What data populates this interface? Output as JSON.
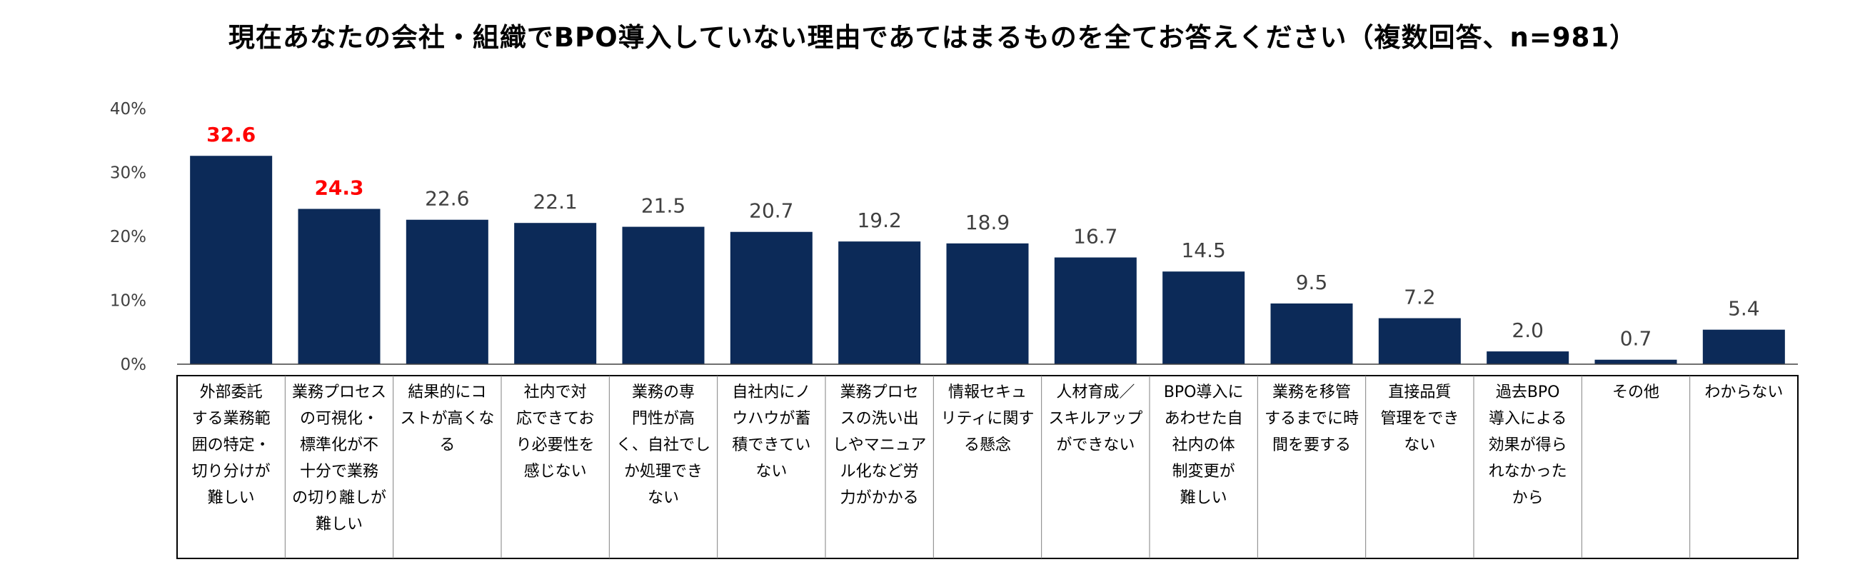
{
  "chart_data": {
    "type": "bar",
    "title": "現在あなたの会社・組織でBPO導入していない理由であてはまるものを全てお答えください（複数回答、n=981）",
    "ylim": [
      0,
      40
    ],
    "yticks": [
      "40%",
      "30%",
      "20%",
      "10%",
      "0%"
    ],
    "grid": false,
    "legend": "none",
    "bar_color": "#0c2a58",
    "highlight_label_color": "#ff0000",
    "highlighted_indices": [
      0,
      1
    ],
    "categories": [
      "外部委託する業務範囲の特定・切り分けが難しい",
      "業務プロセスの可視化・標準化が不十分で業務の切り離しが難しい",
      "結果的にコストが高くなる",
      "社内で対応できており必要性を感じない",
      "業務の専門性が高く、自社でしか処理できない",
      "自社内にノウハウが蓄積できていない",
      "業務プロセスの洗い出しやマニュアル化など労力がかかる",
      "情報セキュリティに関する懸念",
      "人材育成／スキルアップができない",
      "BPO導入にあわせた自社内の体制変更が難しい",
      "業務を移管するまでに時間を要する",
      "直接品質管理をできない",
      "過去BPO導入による効果が得られなかったから",
      "その他",
      "わからない"
    ],
    "category_lines": [
      [
        "外部委託",
        "する業務範",
        "囲の特定・",
        "切り分けが",
        "難しい"
      ],
      [
        "業務プロセス",
        "の可視化・",
        "標準化が不",
        "十分で業務",
        "の切り離しが",
        "難しい"
      ],
      [
        "結果的にコ",
        "ストが高くな",
        "る"
      ],
      [
        "社内で対",
        "応できてお",
        "り必要性を",
        "感じない"
      ],
      [
        "業務の専",
        "門性が高",
        "く、自社でし",
        "か処理でき",
        "ない"
      ],
      [
        "自社内にノ",
        "ウハウが蓄",
        "積できてい",
        "ない"
      ],
      [
        "業務プロセ",
        "スの洗い出",
        "しやマニュア",
        "ル化など労",
        "力がかかる"
      ],
      [
        "情報セキュ",
        "リティに関す",
        "る懸念"
      ],
      [
        "人材育成／",
        "スキルアップ",
        "ができない"
      ],
      [
        "BPO導入に",
        "あわせた自",
        "社内の体",
        "制変更が",
        "難しい"
      ],
      [
        "業務を移管",
        "するまでに時",
        "間を要する"
      ],
      [
        "直接品質",
        "管理をでき",
        "ない"
      ],
      [
        "過去BPO",
        "導入による",
        "効果が得ら",
        "れなかった",
        "から"
      ],
      [
        "その他"
      ],
      [
        "わからない"
      ]
    ],
    "values": [
      32.6,
      24.3,
      22.6,
      22.1,
      21.5,
      20.7,
      19.2,
      18.9,
      16.7,
      14.5,
      9.5,
      7.2,
      2.0,
      0.7,
      5.4
    ],
    "value_labels": [
      "32.6",
      "24.3",
      "22.6",
      "22.1",
      "21.5",
      "20.7",
      "19.2",
      "18.9",
      "16.7",
      "14.5",
      "9.5",
      "7.2",
      "2.0",
      "0.7",
      "5.4"
    ]
  }
}
